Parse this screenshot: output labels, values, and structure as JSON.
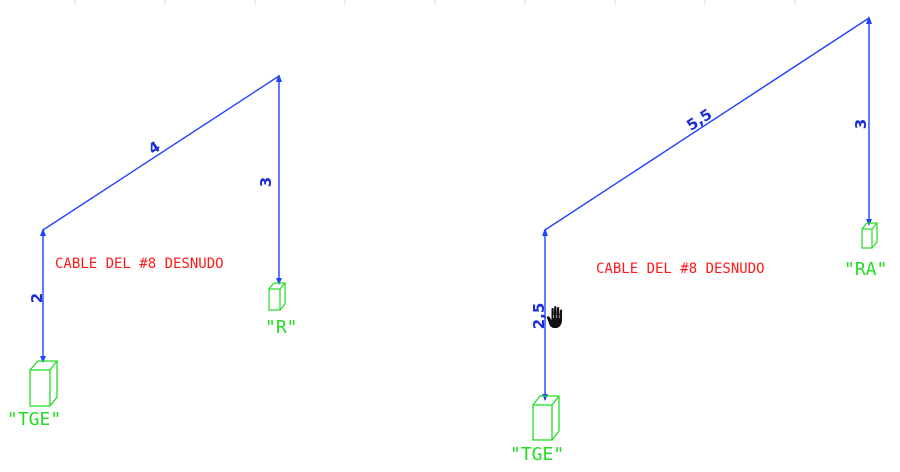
{
  "colors": {
    "wire": "#1f44ff",
    "label": "#1a2fd6",
    "note": "#ff1a1a",
    "device": "#22dd22",
    "hand": "#111111",
    "ruler": "#dcdcdc"
  },
  "left_diagram": {
    "segment_diagonal_length": "4",
    "segment_right_drop_length": "3",
    "segment_left_drop_length": "2",
    "cable_note": "CABLE DEL #8 DESNUDO",
    "box_bottom_label": "\"TGE\"",
    "box_right_label": "\"R\""
  },
  "right_diagram": {
    "segment_diagonal_length": "5,5",
    "segment_right_drop_length": "3",
    "segment_left_drop_length": "2,5",
    "cable_note": "CABLE DEL #8 DESNUDO",
    "box_bottom_label": "\"TGE\"",
    "box_right_label": "\"RA\""
  },
  "cursor": {
    "icon": "hand-pan-icon"
  }
}
